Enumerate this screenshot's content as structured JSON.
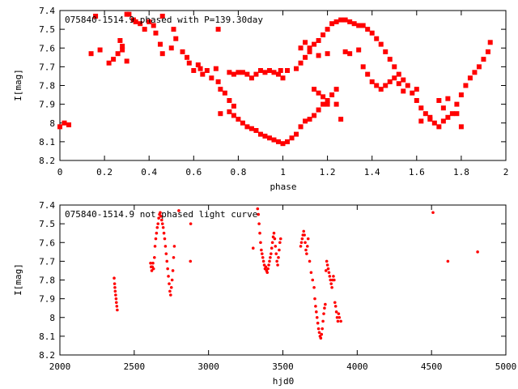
{
  "chart_data": [
    {
      "type": "scatter",
      "title": "075840-1514.9 phased with P=139.30day",
      "xlabel": "phase",
      "ylabel": "I[mag]",
      "xlim": [
        0,
        2
      ],
      "ylim": [
        7.4,
        8.2
      ],
      "y_inverted": true,
      "grid": false,
      "x_ticks": [
        "0",
        "0.2",
        "0.4",
        "0.6",
        "0.8",
        "1",
        "1.2",
        "1.4",
        "1.6",
        "1.8",
        "2"
      ],
      "y_ticks": [
        "7.4",
        "7.5",
        "7.6",
        "7.7",
        "7.8",
        "7.9",
        "8",
        "8.1",
        "8.2"
      ],
      "marker": "square",
      "color": "#ff0000",
      "points": [
        [
          0.0,
          8.02
        ],
        [
          0.02,
          8.0
        ],
        [
          0.04,
          8.01
        ],
        [
          0.14,
          7.63
        ],
        [
          0.16,
          7.43
        ],
        [
          0.18,
          7.61
        ],
        [
          0.22,
          7.68
        ],
        [
          0.24,
          7.66
        ],
        [
          0.26,
          7.63
        ],
        [
          0.27,
          7.56
        ],
        [
          0.28,
          7.59
        ],
        [
          0.28,
          7.61
        ],
        [
          0.3,
          7.67
        ],
        [
          0.3,
          7.42
        ],
        [
          0.31,
          7.42
        ],
        [
          0.33,
          7.45
        ],
        [
          0.34,
          7.46
        ],
        [
          0.36,
          7.47
        ],
        [
          0.38,
          7.5
        ],
        [
          0.4,
          7.46
        ],
        [
          0.42,
          7.48
        ],
        [
          0.43,
          7.52
        ],
        [
          0.45,
          7.58
        ],
        [
          0.46,
          7.43
        ],
        [
          0.46,
          7.63
        ],
        [
          0.5,
          7.6
        ],
        [
          0.51,
          7.5
        ],
        [
          0.52,
          7.55
        ],
        [
          0.55,
          7.62
        ],
        [
          0.57,
          7.65
        ],
        [
          0.58,
          7.68
        ],
        [
          0.6,
          7.72
        ],
        [
          0.62,
          7.69
        ],
        [
          0.63,
          7.71
        ],
        [
          0.64,
          7.74
        ],
        [
          0.66,
          7.72
        ],
        [
          0.68,
          7.76
        ],
        [
          0.7,
          7.71
        ],
        [
          0.71,
          7.78
        ],
        [
          0.71,
          7.5
        ],
        [
          0.72,
          7.82
        ],
        [
          0.74,
          7.84
        ],
        [
          0.76,
          7.88
        ],
        [
          0.78,
          7.91
        ],
        [
          0.76,
          7.73
        ],
        [
          0.78,
          7.74
        ],
        [
          0.8,
          7.73
        ],
        [
          0.82,
          7.73
        ],
        [
          0.84,
          7.74
        ],
        [
          0.86,
          7.76
        ],
        [
          0.88,
          7.74
        ],
        [
          0.9,
          7.72
        ],
        [
          0.92,
          7.73
        ],
        [
          0.94,
          7.72
        ],
        [
          0.96,
          7.73
        ],
        [
          0.98,
          7.74
        ],
        [
          1.0,
          7.76
        ],
        [
          0.99,
          7.72
        ],
        [
          1.02,
          7.72
        ],
        [
          0.72,
          7.95
        ],
        [
          0.76,
          7.94
        ],
        [
          0.78,
          7.96
        ],
        [
          0.8,
          7.98
        ],
        [
          0.82,
          8.0
        ],
        [
          0.84,
          8.02
        ],
        [
          0.86,
          8.03
        ],
        [
          0.88,
          8.04
        ],
        [
          0.9,
          8.06
        ],
        [
          0.92,
          8.07
        ],
        [
          0.94,
          8.08
        ],
        [
          0.96,
          8.09
        ],
        [
          0.98,
          8.1
        ],
        [
          1.0,
          8.11
        ],
        [
          1.02,
          8.1
        ],
        [
          1.04,
          8.08
        ],
        [
          1.06,
          8.06
        ],
        [
          1.08,
          8.02
        ],
        [
          1.1,
          7.99
        ],
        [
          1.12,
          7.98
        ],
        [
          1.14,
          7.96
        ],
        [
          1.16,
          7.93
        ],
        [
          1.18,
          7.9
        ],
        [
          1.2,
          7.88
        ],
        [
          1.22,
          7.85
        ],
        [
          1.24,
          7.82
        ],
        [
          1.08,
          7.68
        ],
        [
          1.1,
          7.65
        ],
        [
          1.12,
          7.62
        ],
        [
          1.14,
          7.58
        ],
        [
          1.16,
          7.56
        ],
        [
          1.18,
          7.53
        ],
        [
          1.2,
          7.5
        ],
        [
          1.22,
          7.47
        ],
        [
          1.24,
          7.46
        ],
        [
          1.26,
          7.45
        ],
        [
          1.28,
          7.45
        ],
        [
          1.3,
          7.46
        ],
        [
          1.32,
          7.47
        ],
        [
          1.34,
          7.48
        ],
        [
          1.36,
          7.48
        ],
        [
          1.38,
          7.5
        ],
        [
          1.4,
          7.52
        ],
        [
          1.42,
          7.55
        ],
        [
          1.44,
          7.58
        ],
        [
          1.46,
          7.62
        ],
        [
          1.48,
          7.66
        ],
        [
          1.5,
          7.7
        ],
        [
          1.52,
          7.74
        ],
        [
          1.54,
          7.77
        ],
        [
          1.56,
          7.8
        ],
        [
          1.58,
          7.84
        ],
        [
          1.6,
          7.88
        ],
        [
          1.62,
          7.92
        ],
        [
          1.64,
          7.95
        ],
        [
          1.66,
          7.98
        ],
        [
          1.68,
          8.0
        ],
        [
          1.7,
          8.02
        ],
        [
          1.72,
          7.99
        ],
        [
          1.74,
          7.97
        ],
        [
          1.76,
          7.95
        ],
        [
          1.78,
          7.9
        ],
        [
          1.8,
          7.85
        ],
        [
          1.82,
          7.8
        ],
        [
          1.84,
          7.76
        ],
        [
          1.86,
          7.73
        ],
        [
          1.88,
          7.7
        ],
        [
          1.9,
          7.66
        ],
        [
          1.92,
          7.62
        ],
        [
          1.93,
          7.57
        ],
        [
          1.3,
          7.63
        ],
        [
          1.34,
          7.61
        ],
        [
          1.36,
          7.7
        ],
        [
          1.38,
          7.74
        ],
        [
          1.4,
          7.78
        ],
        [
          1.42,
          7.8
        ],
        [
          1.44,
          7.82
        ],
        [
          1.46,
          7.8
        ],
        [
          1.48,
          7.78
        ],
        [
          1.5,
          7.76
        ],
        [
          1.52,
          7.79
        ],
        [
          1.54,
          7.83
        ],
        [
          1.6,
          7.82
        ],
        [
          1.62,
          7.99
        ],
        [
          1.66,
          7.97
        ],
        [
          1.7,
          7.88
        ],
        [
          1.72,
          7.92
        ],
        [
          1.74,
          7.87
        ],
        [
          1.78,
          7.95
        ],
        [
          1.8,
          8.02
        ],
        [
          1.2,
          7.9
        ],
        [
          1.24,
          7.9
        ],
        [
          1.26,
          7.98
        ],
        [
          1.28,
          7.62
        ],
        [
          1.06,
          7.71
        ],
        [
          1.08,
          7.6
        ],
        [
          1.1,
          7.57
        ],
        [
          1.12,
          7.6
        ],
        [
          1.16,
          7.64
        ],
        [
          1.2,
          7.63
        ],
        [
          1.14,
          7.82
        ],
        [
          1.16,
          7.84
        ],
        [
          1.18,
          7.86
        ]
      ]
    },
    {
      "type": "scatter",
      "title": "075840-1514.9 not phased light curve",
      "xlabel": "hjd0",
      "ylabel": "I[mag]",
      "xlim": [
        2000,
        5000
      ],
      "ylim": [
        7.4,
        8.2
      ],
      "y_inverted": true,
      "grid": false,
      "x_ticks": [
        "2000",
        "2500",
        "3000",
        "3500",
        "4000",
        "4500",
        "5000"
      ],
      "y_ticks": [
        "7.4",
        "7.5",
        "7.6",
        "7.7",
        "7.8",
        "7.9",
        "8",
        "8.1",
        "8.2"
      ],
      "marker": "dot",
      "color": "#ff0000",
      "points": [
        [
          2365,
          7.79
        ],
        [
          2368,
          7.82
        ],
        [
          2370,
          7.84
        ],
        [
          2372,
          7.86
        ],
        [
          2375,
          7.88
        ],
        [
          2378,
          7.9
        ],
        [
          2380,
          7.92
        ],
        [
          2383,
          7.94
        ],
        [
          2386,
          7.96
        ],
        [
          2610,
          7.71
        ],
        [
          2614,
          7.73
        ],
        [
          2618,
          7.75
        ],
        [
          2622,
          7.73
        ],
        [
          2626,
          7.71
        ],
        [
          2630,
          7.74
        ],
        [
          2636,
          7.68
        ],
        [
          2640,
          7.62
        ],
        [
          2645,
          7.58
        ],
        [
          2650,
          7.55
        ],
        [
          2655,
          7.52
        ],
        [
          2660,
          7.5
        ],
        [
          2665,
          7.47
        ],
        [
          2670,
          7.45
        ],
        [
          2675,
          7.44
        ],
        [
          2680,
          7.46
        ],
        [
          2685,
          7.48
        ],
        [
          2690,
          7.5
        ],
        [
          2695,
          7.52
        ],
        [
          2700,
          7.55
        ],
        [
          2705,
          7.58
        ],
        [
          2710,
          7.62
        ],
        [
          2715,
          7.66
        ],
        [
          2720,
          7.7
        ],
        [
          2725,
          7.74
        ],
        [
          2730,
          7.78
        ],
        [
          2735,
          7.82
        ],
        [
          2740,
          7.86
        ],
        [
          2745,
          7.88
        ],
        [
          2750,
          7.84
        ],
        [
          2755,
          7.8
        ],
        [
          2760,
          7.75
        ],
        [
          2765,
          7.68
        ],
        [
          2770,
          7.62
        ],
        [
          2800,
          7.43
        ],
        [
          2880,
          7.5
        ],
        [
          2878,
          7.7
        ],
        [
          3300,
          7.63
        ],
        [
          3330,
          7.42
        ],
        [
          3335,
          7.45
        ],
        [
          3340,
          7.5
        ],
        [
          3345,
          7.55
        ],
        [
          3350,
          7.6
        ],
        [
          3355,
          7.64
        ],
        [
          3360,
          7.66
        ],
        [
          3365,
          7.68
        ],
        [
          3370,
          7.7
        ],
        [
          3375,
          7.72
        ],
        [
          3380,
          7.74
        ],
        [
          3385,
          7.73
        ],
        [
          3390,
          7.75
        ],
        [
          3395,
          7.76
        ],
        [
          3400,
          7.74
        ],
        [
          3405,
          7.72
        ],
        [
          3410,
          7.7
        ],
        [
          3415,
          7.68
        ],
        [
          3420,
          7.66
        ],
        [
          3425,
          7.63
        ],
        [
          3430,
          7.6
        ],
        [
          3435,
          7.57
        ],
        [
          3440,
          7.55
        ],
        [
          3445,
          7.58
        ],
        [
          3450,
          7.62
        ],
        [
          3455,
          7.66
        ],
        [
          3460,
          7.7
        ],
        [
          3465,
          7.72
        ],
        [
          3470,
          7.68
        ],
        [
          3475,
          7.64
        ],
        [
          3480,
          7.6
        ],
        [
          3485,
          7.58
        ],
        [
          3620,
          7.62
        ],
        [
          3625,
          7.6
        ],
        [
          3630,
          7.58
        ],
        [
          3635,
          7.56
        ],
        [
          3640,
          7.54
        ],
        [
          3645,
          7.56
        ],
        [
          3650,
          7.6
        ],
        [
          3655,
          7.64
        ],
        [
          3660,
          7.66
        ],
        [
          3665,
          7.62
        ],
        [
          3670,
          7.58
        ],
        [
          3680,
          7.7
        ],
        [
          3690,
          7.76
        ],
        [
          3700,
          7.8
        ],
        [
          3710,
          7.84
        ],
        [
          3715,
          7.9
        ],
        [
          3720,
          7.94
        ],
        [
          3725,
          7.97
        ],
        [
          3730,
          8.0
        ],
        [
          3735,
          8.03
        ],
        [
          3740,
          8.06
        ],
        [
          3745,
          8.08
        ],
        [
          3750,
          8.1
        ],
        [
          3755,
          8.11
        ],
        [
          3760,
          8.09
        ],
        [
          3765,
          8.06
        ],
        [
          3770,
          8.02
        ],
        [
          3775,
          7.98
        ],
        [
          3780,
          7.95
        ],
        [
          3785,
          7.93
        ],
        [
          3790,
          7.75
        ],
        [
          3795,
          7.7
        ],
        [
          3800,
          7.72
        ],
        [
          3805,
          7.74
        ],
        [
          3810,
          7.76
        ],
        [
          3815,
          7.78
        ],
        [
          3820,
          7.8
        ],
        [
          3825,
          7.82
        ],
        [
          3830,
          7.84
        ],
        [
          3835,
          7.8
        ],
        [
          3840,
          7.78
        ],
        [
          3845,
          7.8
        ],
        [
          3850,
          7.92
        ],
        [
          3855,
          7.94
        ],
        [
          3860,
          7.97
        ],
        [
          3865,
          8.0
        ],
        [
          3870,
          8.02
        ],
        [
          3875,
          7.98
        ],
        [
          3880,
          8.0
        ],
        [
          3890,
          8.02
        ],
        [
          4510,
          7.44
        ],
        [
          4610,
          7.7
        ],
        [
          4810,
          7.65
        ]
      ]
    }
  ]
}
